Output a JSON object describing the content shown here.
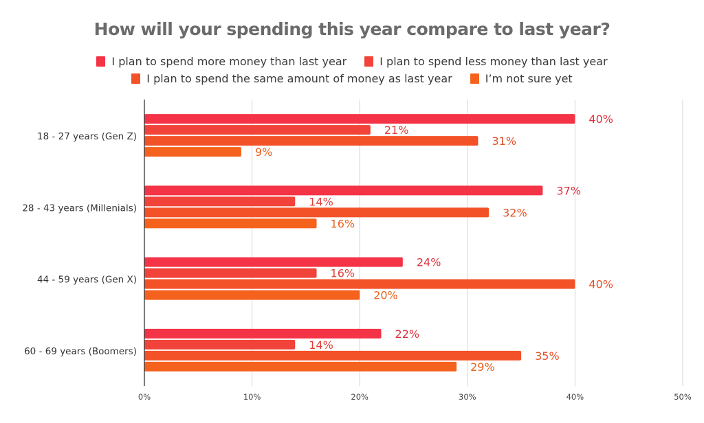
{
  "chart_data": {
    "type": "bar",
    "orientation": "horizontal",
    "title": "How will your spending this year compare to last year?",
    "xlabel": "",
    "ylabel": "",
    "xlim": [
      0,
      50
    ],
    "x_ticks": [
      "0%",
      "10%",
      "20%",
      "30%",
      "40%",
      "50%"
    ],
    "x_tick_values": [
      0,
      10,
      20,
      30,
      40,
      50
    ],
    "grid": "vertical",
    "legend_position": "top",
    "categories": [
      "18 - 27 years (Gen Z)",
      "28 - 43 years (Millenials)",
      "44 - 59 years (Gen X)",
      "60 - 69 years (Boomers)"
    ],
    "series": [
      {
        "name": "I plan to spend more money than last year",
        "color": "#f43346",
        "label_color": "#e0303f",
        "values": [
          40,
          37,
          24,
          22
        ]
      },
      {
        "name": "I plan to spend less money than last year",
        "color": "#f1433a",
        "label_color": "#e04038",
        "values": [
          21,
          14,
          16,
          14
        ]
      },
      {
        "name": "I plan to spend the same amount of money as last year",
        "color": "#f35128",
        "label_color": "#e65128",
        "values": [
          31,
          32,
          40,
          35
        ]
      },
      {
        "name": "I’m not sure yet",
        "color": "#f5621d",
        "label_color": "#ea621f",
        "values": [
          9,
          16,
          20,
          29
        ]
      }
    ],
    "value_suffix": "%"
  }
}
